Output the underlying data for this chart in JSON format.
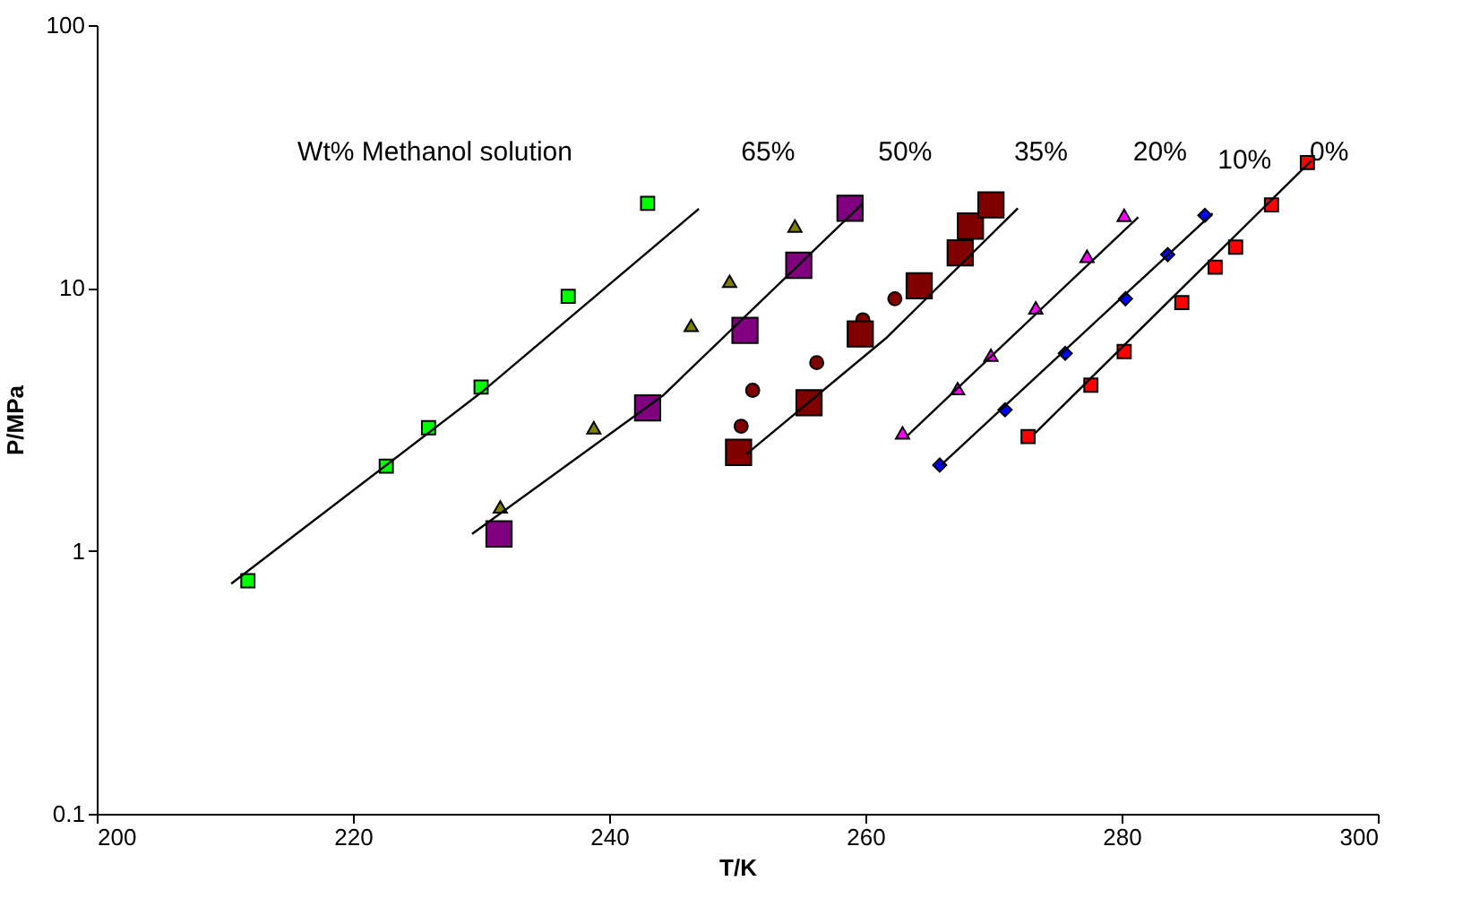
{
  "chart_data": {
    "type": "scatter",
    "xlabel": "T/K",
    "ylabel": "P/MPa",
    "log": "y",
    "xlim": [
      200,
      300
    ],
    "xticks": [
      200,
      220,
      240,
      260,
      280,
      300
    ],
    "ylim": [
      0.1,
      100
    ],
    "yticks": [
      0.1,
      1,
      10,
      100
    ],
    "grid": false,
    "series": [
      {
        "marker": "square",
        "color": "#00ff00",
        "x": [
          211.8,
          222.6,
          225.9,
          230.0,
          236.8,
          243.0
        ],
        "values": [
          0.77,
          2.1,
          2.94,
          4.2,
          9.3,
          21
        ]
      },
      {
        "type": "line",
        "color": "#000000",
        "x": [
          210.5,
          230.0,
          247.0
        ],
        "values": [
          0.75,
          4.0,
          20
        ]
      },
      {
        "marker": "triangle",
        "color": "#808000",
        "x": [
          231.5,
          238.8,
          246.4,
          249.4,
          254.5
        ],
        "values": [
          1.47,
          2.94,
          7.2,
          10.6,
          17.2
        ]
      },
      {
        "marker": "square",
        "color": "#800080",
        "x": [
          231.4,
          243.0,
          250.6,
          254.8,
          258.8
        ],
        "values": [
          1.16,
          3.5,
          6.9,
          12.2,
          20.1
        ]
      },
      {
        "type": "line",
        "color": "#000000",
        "x": [
          229.3,
          244.2,
          259.8
        ],
        "values": [
          1.16,
          3.9,
          21
        ]
      },
      {
        "marker": "circle",
        "color": "#800000",
        "x": [
          250.3,
          251.2,
          256.2,
          259.8,
          262.3
        ],
        "values": [
          2.98,
          4.08,
          5.2,
          7.57,
          9.1
        ]
      },
      {
        "marker": "square",
        "color": "#800000",
        "x": [
          250.1,
          255.6,
          259.6,
          264.2,
          267.4,
          268.2,
          269.8
        ],
        "values": [
          2.37,
          3.66,
          6.68,
          10.2,
          13.6,
          17.2,
          20.7
        ]
      },
      {
        "type": "line",
        "color": "#000000",
        "x": [
          250.7,
          261.7,
          271.9
        ],
        "values": [
          2.33,
          6.5,
          20.1
        ]
      },
      {
        "marker": "triangle",
        "color": "#ff00ff",
        "x": [
          262.9,
          267.2,
          269.8,
          273.3,
          277.3,
          280.2
        ],
        "values": [
          2.81,
          4.14,
          5.55,
          8.4,
          13.2,
          18.9
        ]
      },
      {
        "type": "line",
        "color": "#000000",
        "x": [
          263.2,
          281.3
        ],
        "values": [
          2.72,
          18.6
        ]
      },
      {
        "marker": "diamond",
        "color": "#0000ff",
        "x": [
          265.8,
          270.9,
          275.6,
          280.3,
          283.6,
          286.5
        ],
        "values": [
          2.12,
          3.44,
          5.64,
          9.1,
          13.4,
          18.9
        ]
      },
      {
        "type": "line",
        "color": "#000000",
        "x": [
          265.9,
          287.1
        ],
        "values": [
          2.12,
          19.2
        ]
      },
      {
        "marker": "square",
        "color": "#ff0000",
        "x": [
          272.7,
          277.6,
          280.2,
          284.7,
          287.3,
          288.9,
          291.7,
          294.5
        ],
        "values": [
          2.72,
          4.27,
          5.73,
          8.8,
          12.0,
          14.3,
          20.7,
          30
        ]
      },
      {
        "type": "line",
        "color": "#000000",
        "x": [
          273.1,
          294.8
        ],
        "values": [
          2.76,
          30.5
        ]
      }
    ],
    "annotations": [
      "Wt% Methanol solution",
      "65%",
      "50%",
      "35%",
      "20%",
      "10%",
      "0%"
    ]
  }
}
